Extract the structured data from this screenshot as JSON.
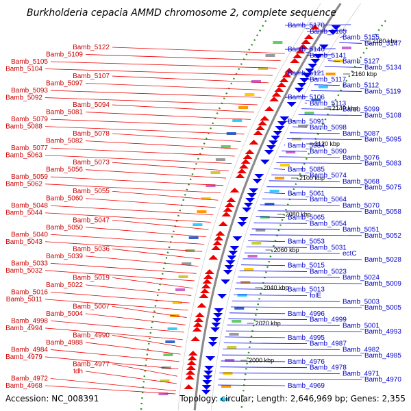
{
  "title": "Burkholderia cepacia AMMD chromosome 2, complete sequence",
  "footer": {
    "accession": "Accession: NC_008391",
    "stats": "Topology: circular; Length: 2,646,969 bp; Genes: 2,355"
  },
  "colors": {
    "forward": "#ee0000",
    "reverse": "#0000ee",
    "backbone": "#8a8a8a",
    "dots": "#2e8b22"
  },
  "kbp_ticks": [
    "2180 kbp",
    "2160 kbp",
    "2140 kbp",
    "2120 kbp",
    "2100 kbp",
    "2080 kbp",
    "2060 kbp",
    "2040 kbp",
    "2020 kbp",
    "2000 kbp"
  ],
  "left_labels": [
    "Bamb_5122",
    "Bamb_5109",
    "Bamb_5105",
    "Bamb_5104",
    "Bamb_5107",
    "Bamb_5097",
    "Bamb_5093",
    "Bamb_5092",
    "Bamb_5094",
    "Bamb_5081",
    "Bamb_5079",
    "Bamb_5088",
    "Bamb_5078",
    "Bamb_5082",
    "Bamb_5077",
    "Bamb_5063",
    "Bamb_5073",
    "Bamb_5056",
    "Bamb_5059",
    "Bamb_5062",
    "Bamb_5055",
    "Bamb_5060",
    "Bamb_5048",
    "Bamb_5044",
    "Bamb_5047",
    "Bamb_5050",
    "Bamb_5040",
    "Bamb_5043",
    "Bamb_5036",
    "Bamb_5039",
    "Bamb_5033",
    "Bamb_5032",
    "Bamb_5019",
    "Bamb_5022",
    "Bamb_5016",
    "Bamb_5011",
    "Bamb_5007",
    "Bamb_5004",
    "Bamb_4998",
    "Bamb_4994",
    "Bamb_4990",
    "Bamb_4988",
    "Bamb_4984",
    "Bamb_4979",
    "Bamb_4977",
    "tdh",
    "Bamb_4972",
    "Bamb_4968"
  ],
  "right_labels": [
    "Bamb_5170",
    "Bamb_5165",
    "Bamb_5155",
    "Bamb_5147",
    "Bamb_5146",
    "Bamb_5141",
    "Bamb_5127",
    "Bamb_5134",
    "Bamb_5121",
    "Bamb_5117",
    "Bamb_5112",
    "Bamb_5119",
    "Bamb_5106",
    "Bamb_5113",
    "Bamb_5099",
    "Bamb_5108",
    "Bamb_5091",
    "Bamb_5098",
    "Bamb_5087",
    "Bamb_5095",
    "Bamb_5084",
    "Bamb_5090",
    "Bamb_5076",
    "Bamb_5083",
    "Bamb_5085",
    "Bamb_5074",
    "Bamb_5068",
    "Bamb_5075",
    "Bamb_5061",
    "Bamb_5064",
    "Bamb_5070",
    "Bamb_5058",
    "Bamb_5065",
    "Bamb_5054",
    "Bamb_5051",
    "Bamb_5052",
    "Bamb_5053",
    "Bamb_5031",
    "ectC",
    "Bamb_5028",
    "Bamb_5015",
    "Bamb_5023",
    "Bamb_5024",
    "Bamb_5009",
    "Bamb_5013",
    "folE",
    "Bamb_5003",
    "Bamb_5005",
    "Bamb_4996",
    "Bamb_4999",
    "Bamb_5001",
    "Bamb_4993",
    "Bamb_4995",
    "Bamb_4987",
    "Bamb_4982",
    "Bamb_4985",
    "Bamb_4976",
    "Bamb_4978",
    "Bamb_4971",
    "Bamb_4970",
    "Bamb_4969"
  ]
}
